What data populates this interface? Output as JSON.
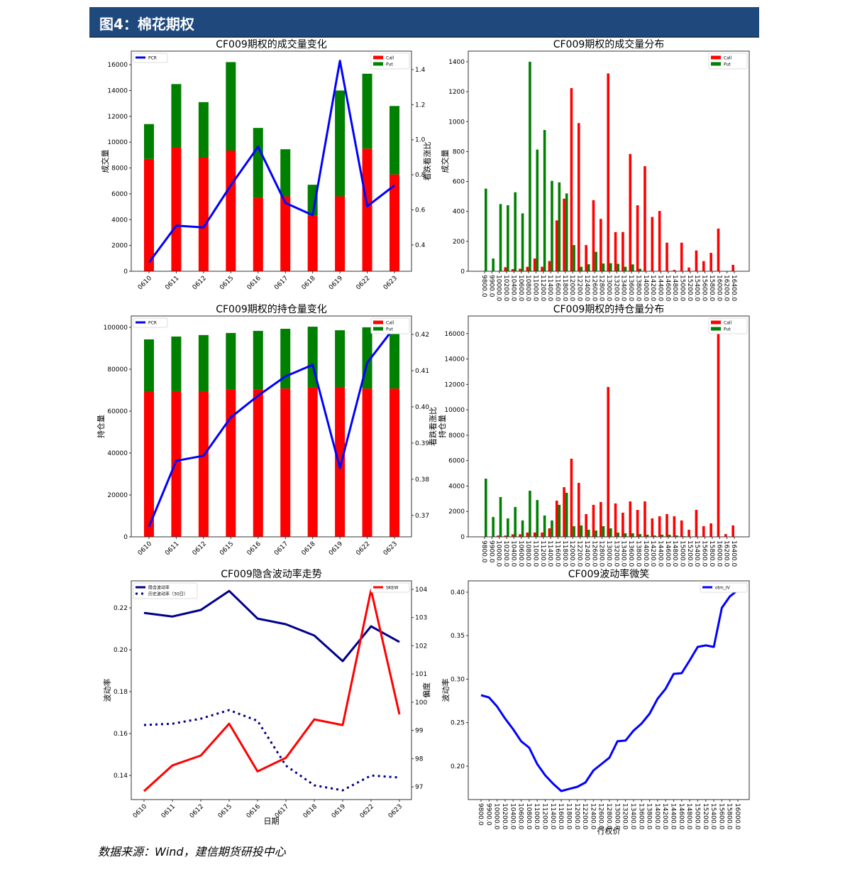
{
  "header": {
    "title": "图4：棉花期权"
  },
  "footer": {
    "source": "数据来源：Wind，建信期货研投中心"
  },
  "colors": {
    "header_bg": "#1f497d",
    "call": "#ff0000",
    "put": "#008000",
    "pcr": "#0000ff",
    "iv": "#00008b"
  },
  "chart_data": [
    {
      "type": "bar",
      "title": "CF009期权的成交量变化",
      "ylabel": "成交量",
      "y2label": "看跌看涨比",
      "xlabel": "",
      "categories": [
        "0610",
        "0611",
        "0612",
        "0615",
        "0616",
        "0617",
        "0618",
        "0619",
        "0622",
        "0623"
      ],
      "ylim": [
        0,
        17050
      ],
      "yticks": [
        0,
        2000,
        4000,
        6000,
        8000,
        10000,
        12000,
        14000,
        16000
      ],
      "y2lim": [
        0.25,
        1.505
      ],
      "y2ticks": [
        "0.4",
        "0.6",
        "0.8",
        "1.0",
        "1.2",
        "1.4"
      ],
      "grid": false,
      "series": [
        {
          "name": "Call",
          "kind": "bar",
          "stack": true,
          "axis": "left",
          "color": "#ff0000",
          "legend": "top-right",
          "values": [
            8700,
            9600,
            8800,
            9350,
            5700,
            5800,
            4300,
            5800,
            9500,
            7500
          ]
        },
        {
          "name": "Put",
          "kind": "bar",
          "stack": true,
          "axis": "left",
          "color": "#008000",
          "legend": "top-right",
          "values": [
            2700,
            4900,
            4300,
            6850,
            5400,
            3650,
            2400,
            8200,
            5800,
            5300
          ]
        },
        {
          "name": "PCR",
          "kind": "line",
          "axis": "right",
          "color": "#0000ff",
          "legend": "top-left",
          "values": [
            0.3,
            0.51,
            0.5,
            0.74,
            0.96,
            0.64,
            0.57,
            1.45,
            0.62,
            0.74
          ]
        }
      ]
    },
    {
      "type": "bar",
      "title": "CF009期权的成交量分布",
      "ylabel": "成交量",
      "xlabel": "",
      "categories": [
        "9800.0",
        "9900.0",
        "10000.0",
        "10200.0",
        "10400.0",
        "10600.0",
        "10800.0",
        "11000.0",
        "11200.0",
        "11400.0",
        "11600.0",
        "11800.0",
        "12000.0",
        "12200.0",
        "12400.0",
        "12600.0",
        "12800.0",
        "13000.0",
        "13200.0",
        "13400.0",
        "13600.0",
        "13800.0",
        "14000.0",
        "14200.0",
        "14400.0",
        "14600.0",
        "14800.0",
        "15000.0",
        "15200.0",
        "15400.0",
        "15600.0",
        "15800.0",
        "16000.0",
        "16200.0",
        "16400.0"
      ],
      "ylim": [
        0,
        1471
      ],
      "yticks": [
        0,
        200,
        400,
        600,
        800,
        1000,
        1200,
        1400
      ],
      "grid": false,
      "series": [
        {
          "name": "Call",
          "kind": "bar",
          "group": -1,
          "axis": "left",
          "color": "#ff0000",
          "legend": "top-right",
          "values": [
            0,
            0,
            0,
            27,
            14,
            17,
            30,
            85,
            30,
            68,
            340,
            485,
            1224,
            990,
            175,
            475,
            350,
            1322,
            262,
            262,
            784,
            441,
            702,
            363,
            403,
            191,
            9,
            191,
            25,
            139,
            68,
            123,
            285,
            0,
            43
          ]
        },
        {
          "name": "Put",
          "kind": "bar",
          "group": 1,
          "axis": "left",
          "color": "#008000",
          "legend": "top-right",
          "values": [
            552,
            85,
            449,
            441,
            528,
            387,
            1400,
            813,
            944,
            604,
            594,
            520,
            175,
            30,
            47,
            130,
            52,
            54,
            50,
            30,
            46,
            17,
            0,
            0,
            0,
            0,
            0,
            0,
            0,
            0,
            0,
            0,
            0,
            0,
            0
          ]
        }
      ]
    },
    {
      "type": "bar",
      "title": "CF009期权的持仓量变化",
      "ylabel": "持仓量",
      "y2label": "看跌看涨比",
      "xlabel": "",
      "categories": [
        "0610",
        "0611",
        "0612",
        "0615",
        "0616",
        "0617",
        "0618",
        "0619",
        "0622",
        "0623"
      ],
      "ylim": [
        0,
        105400
      ],
      "yticks": [
        0,
        20000,
        40000,
        60000,
        80000,
        100000
      ],
      "y2lim": [
        0.3641,
        0.4251
      ],
      "y2ticks": [
        "0.37",
        "0.38",
        "0.39",
        "0.40",
        "0.41",
        "0.42"
      ],
      "grid": false,
      "series": [
        {
          "name": "Call",
          "kind": "bar",
          "stack": true,
          "axis": "left",
          "color": "#ff0000",
          "legend": "top-right",
          "values": [
            69150,
            69500,
            69500,
            70200,
            70200,
            70800,
            71200,
            71500,
            70800,
            70800
          ]
        },
        {
          "name": "Put",
          "kind": "bar",
          "stack": true,
          "axis": "left",
          "color": "#008000",
          "legend": "top-right",
          "values": [
            25090,
            26100,
            26800,
            27100,
            28100,
            28500,
            29100,
            27100,
            29200,
            29200
          ]
        },
        {
          "name": "PCR",
          "kind": "line",
          "axis": "right",
          "color": "#0000ff",
          "legend": "top-left",
          "values": [
            0.3669,
            0.3851,
            0.3865,
            0.3971,
            0.4031,
            0.4084,
            0.4116,
            0.3831,
            0.4122,
            0.422
          ]
        }
      ]
    },
    {
      "type": "bar",
      "title": "CF009期权的持仓量分布",
      "ylabel": "持仓量",
      "xlabel": "",
      "categories": [
        "9800.0",
        "9900.0",
        "10000.0",
        "10200.0",
        "10400.0",
        "10600.0",
        "10800.0",
        "11000.0",
        "11200.0",
        "11400.0",
        "11600.0",
        "11800.0",
        "12000.0",
        "12200.0",
        "12400.0",
        "12600.0",
        "12800.0",
        "13000.0",
        "13200.0",
        "13400.0",
        "13600.0",
        "13800.0",
        "14000.0",
        "14200.0",
        "14400.0",
        "14600.0",
        "14800.0",
        "15000.0",
        "15200.0",
        "15400.0",
        "15600.0",
        "15800.0",
        "16000.0",
        "16200.0",
        "16400.0"
      ],
      "ylim": [
        0,
        17385
      ],
      "yticks": [
        0,
        2000,
        4000,
        6000,
        8000,
        10000,
        12000,
        14000,
        16000
      ],
      "grid": false,
      "series": [
        {
          "name": "Call",
          "kind": "bar",
          "group": -1,
          "axis": "left",
          "color": "#ff0000",
          "legend": "top-right",
          "values": [
            0,
            0,
            100,
            100,
            200,
            200,
            340,
            340,
            340,
            670,
            2850,
            3910,
            6150,
            4250,
            1790,
            2520,
            2740,
            11800,
            2630,
            1900,
            2790,
            2120,
            2790,
            1450,
            1620,
            1790,
            1620,
            1290,
            560,
            2120,
            840,
            1060,
            16600,
            220,
            900
          ]
        },
        {
          "name": "Put",
          "kind": "bar",
          "group": 1,
          "axis": "left",
          "color": "#008000",
          "legend": "top-right",
          "values": [
            4580,
            1560,
            3130,
            1450,
            2350,
            1290,
            3630,
            2900,
            1680,
            1290,
            2520,
            3470,
            840,
            900,
            560,
            500,
            840,
            670,
            340,
            280,
            280,
            220,
            170,
            110,
            170,
            170,
            110,
            50,
            0,
            0,
            0,
            0,
            0,
            0,
            0
          ]
        }
      ]
    },
    {
      "type": "line",
      "title": "CF009隐含波动率走势",
      "ylabel": "波动率",
      "y2label": "偏度",
      "xlabel": "日期",
      "categories": [
        "0610",
        "0611",
        "0612",
        "0615",
        "0616",
        "0617",
        "0618",
        "0619",
        "0622",
        "0623"
      ],
      "ylim": [
        0.1285,
        0.2329
      ],
      "yticks": [
        "0.14",
        "0.16",
        "0.18",
        "0.20",
        "0.22"
      ],
      "y2lim": [
        96.55,
        104.3
      ],
      "y2ticks": [
        "97",
        "98",
        "99",
        "100",
        "101",
        "102",
        "103",
        "104"
      ],
      "grid": false,
      "series": [
        {
          "name": "隐含波动率",
          "kind": "line",
          "axis": "left",
          "color": "#00008b",
          "legend": "top-left",
          "values": [
            0.2176,
            0.2159,
            0.219,
            0.2281,
            0.2149,
            0.2122,
            0.2068,
            0.1946,
            0.2112,
            0.2037
          ]
        },
        {
          "name": "历史波动率（30日）",
          "kind": "line",
          "dash": true,
          "axis": "left",
          "color": "#00008b",
          "legend": "top-left",
          "values": [
            0.1641,
            0.1647,
            0.1671,
            0.1712,
            0.1661,
            0.1447,
            0.1353,
            0.1329,
            0.14,
            0.139
          ]
        },
        {
          "name": "SKEW",
          "kind": "line",
          "axis": "right",
          "color": "#ff0000",
          "legend": "top-right",
          "values": [
            96.85,
            97.76,
            98.11,
            99.24,
            97.55,
            98.03,
            99.39,
            99.19,
            103.98,
            99.57
          ]
        }
      ]
    },
    {
      "type": "line",
      "title": "CF009波动率微笑",
      "ylabel": "波动率",
      "xlabel": "行权价",
      "categories": [
        "9800.0",
        "9900.0",
        "10000.0",
        "10200.0",
        "10400.0",
        "10600.0",
        "10800.0",
        "11000.0",
        "11200.0",
        "11400.0",
        "11600.0",
        "11800.0",
        "12000.0",
        "12200.0",
        "12400.0",
        "12600.0",
        "12800.0",
        "13000.0",
        "13200.0",
        "13400.0",
        "13600.0",
        "13800.0",
        "14000.0",
        "14200.0",
        "14400.0",
        "14600.0",
        "14800.0",
        "15000.0",
        "15200.0",
        "15400.0",
        "15600.0",
        "15800.0",
        "16000.0"
      ],
      "ylim": [
        0.1616,
        0.413
      ],
      "yticks": [
        "0.20",
        "0.25",
        "0.30",
        "0.35",
        "0.40"
      ],
      "grid": false,
      "series": [
        {
          "name": "otm_IV",
          "kind": "line",
          "axis": "left",
          "color": "#0000ff",
          "legend": "top-right",
          "values": [
            0.2816,
            0.279,
            0.2686,
            0.2547,
            0.2424,
            0.2286,
            0.2212,
            0.2024,
            0.1894,
            0.1796,
            0.1714,
            0.1739,
            0.1763,
            0.1812,
            0.1951,
            0.2024,
            0.2098,
            0.2286,
            0.2294,
            0.2408,
            0.249,
            0.2604,
            0.2776,
            0.289,
            0.3061,
            0.3069,
            0.3216,
            0.3371,
            0.3388,
            0.3371,
            0.382,
            0.3951,
            0.4024
          ]
        }
      ]
    }
  ]
}
